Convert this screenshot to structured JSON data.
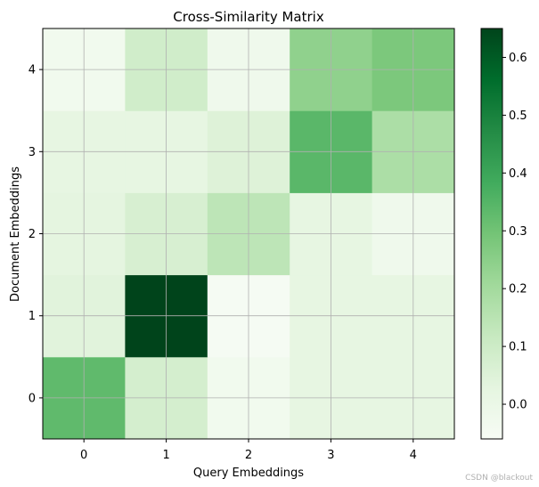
{
  "chart_data": {
    "type": "heatmap",
    "title": "Cross-Similarity Matrix",
    "xlabel": "Query Embeddings",
    "ylabel": "Document Embeddings",
    "x_categories": [
      "0",
      "1",
      "2",
      "3",
      "4"
    ],
    "y_categories": [
      "0",
      "1",
      "2",
      "3",
      "4"
    ],
    "y_origin": "bottom",
    "values": [
      [
        0.33,
        0.08,
        -0.03,
        0.02,
        0.02
      ],
      [
        0.04,
        0.65,
        -0.05,
        0.02,
        0.02
      ],
      [
        0.03,
        0.07,
        0.14,
        0.02,
        -0.02
      ],
      [
        0.02,
        0.02,
        0.05,
        0.34,
        0.18
      ],
      [
        -0.03,
        0.09,
        -0.02,
        0.24,
        0.28
      ]
    ],
    "colormap": "Greens",
    "color_range": [
      -0.06,
      0.65
    ],
    "colorbar_ticks": [
      "0.0",
      "0.1",
      "0.2",
      "0.3",
      "0.4",
      "0.5",
      "0.6"
    ],
    "grid": true
  },
  "watermark": "CSDN @blackout"
}
